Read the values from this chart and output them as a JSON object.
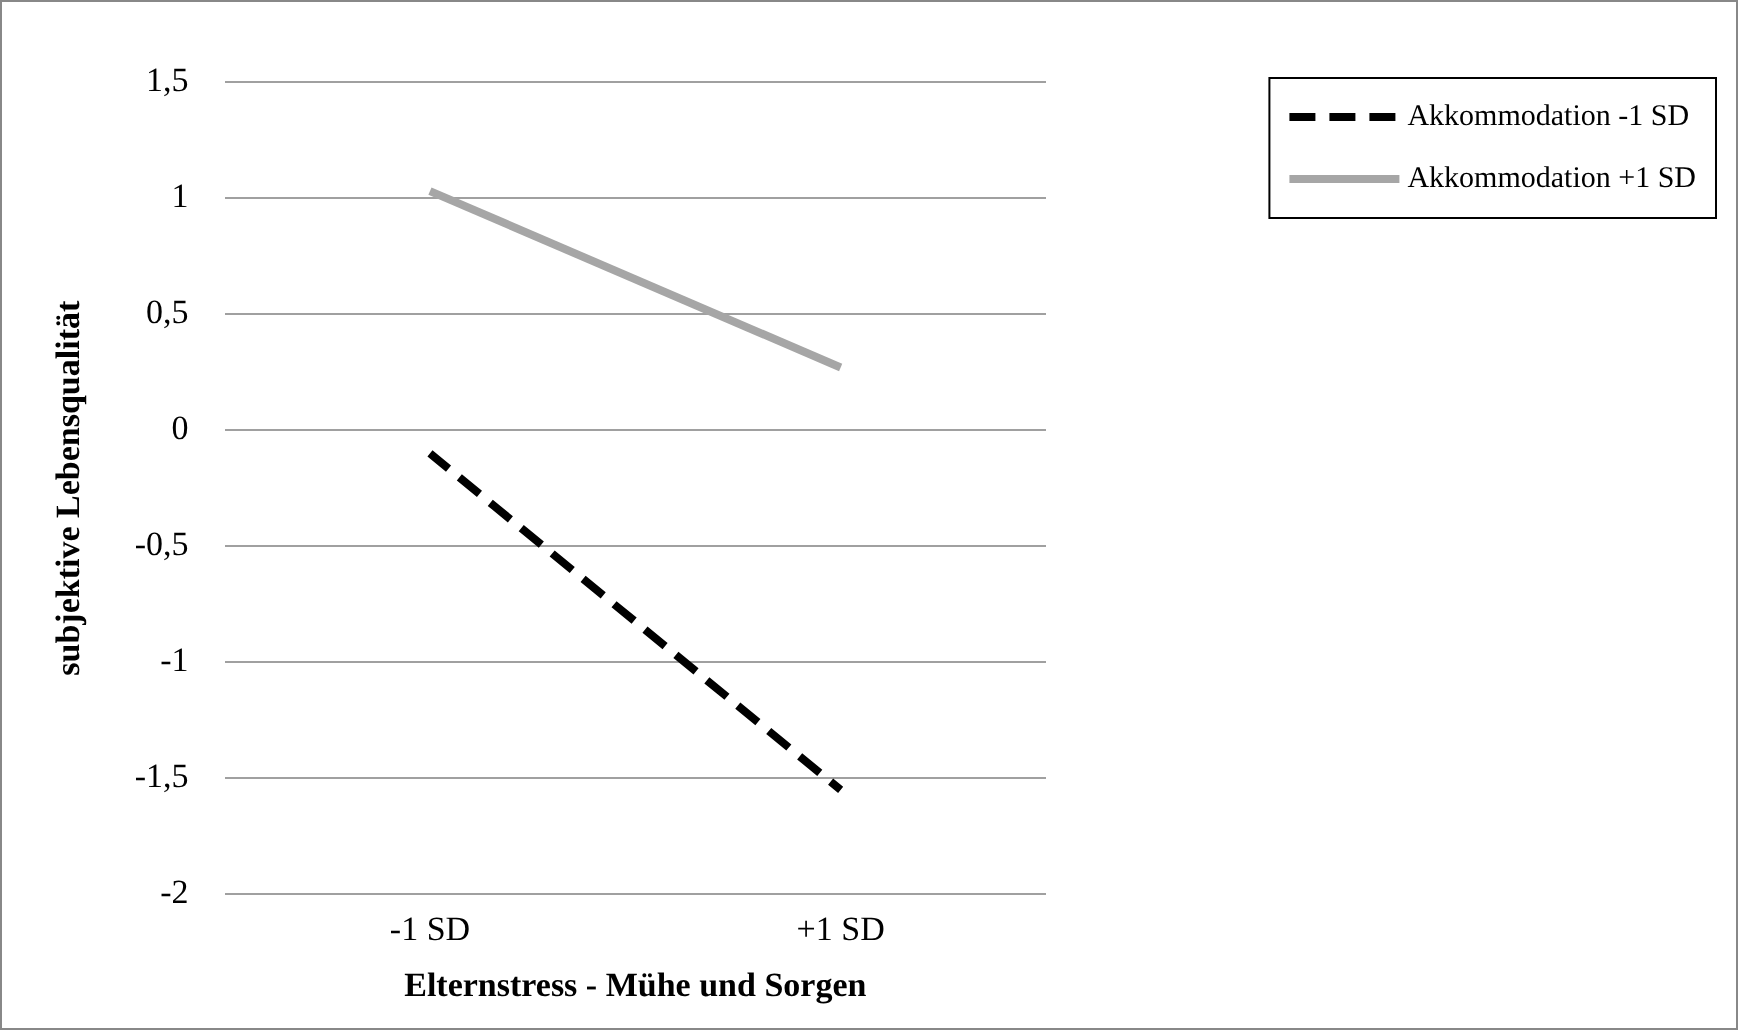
{
  "chart_data": {
    "type": "line",
    "xlabel": "Elternstress - Mühe und Sorgen",
    "ylabel": "subjektive Lebensqualität",
    "categories": [
      "-1 SD",
      "+1 SD"
    ],
    "series": [
      {
        "name": "Akkommodation -1 SD",
        "color": "#000000",
        "line_style": "dashed",
        "values": [
          -0.1,
          -1.55
        ]
      },
      {
        "name": "Akkommodation +1 SD",
        "color": "#a6a6a6",
        "line_style": "solid",
        "values": [
          1.03,
          0.27
        ]
      }
    ],
    "ylim": [
      -2,
      1.5
    ],
    "yticks": [
      {
        "value": -2,
        "label": "-2"
      },
      {
        "value": -1.5,
        "label": "-1,5"
      },
      {
        "value": -1,
        "label": "-1"
      },
      {
        "value": -0.5,
        "label": "-0,5"
      },
      {
        "value": 0,
        "label": "0"
      },
      {
        "value": 0.5,
        "label": "0,5"
      },
      {
        "value": 1,
        "label": "1"
      },
      {
        "value": 1.5,
        "label": "1,5"
      }
    ],
    "grid": "y",
    "legend": "top right",
    "marker": "none"
  }
}
